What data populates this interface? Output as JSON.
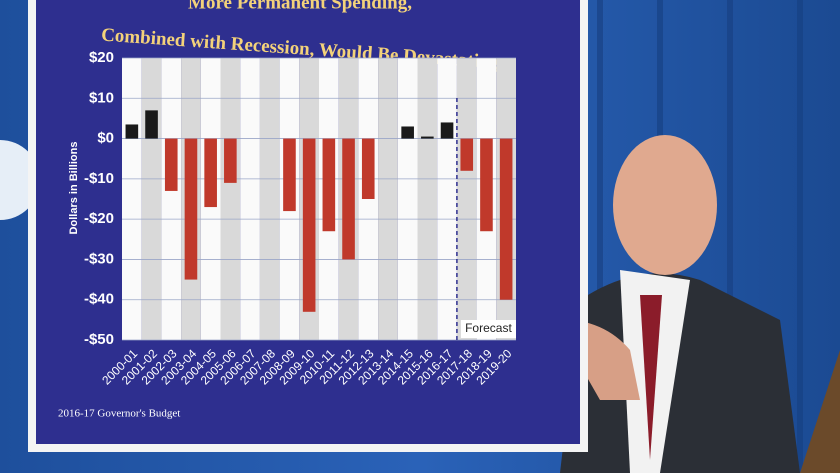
{
  "chart_data": {
    "type": "bar",
    "title_lines": [
      "More Permanent Spending,",
      "Combined with Recession, Would Be Devastating"
    ],
    "y_label": "Dollars in Billions",
    "categories": [
      "2000-01",
      "2001-02",
      "2002-03",
      "2003-04",
      "2004-05",
      "2005-06",
      "2006-07",
      "2007-08",
      "2008-09",
      "2009-10",
      "2010-11",
      "2011-12",
      "2012-13",
      "2013-14",
      "2014-15",
      "2015-16",
      "2016-17",
      "2017-18",
      "2018-19",
      "2019-20"
    ],
    "values": [
      3.5,
      7,
      -13,
      -35,
      -17,
      -11,
      0,
      0,
      -18,
      -43,
      -23,
      -30,
      -15,
      0,
      3,
      0.5,
      4,
      -8,
      -23,
      -40
    ],
    "positive_color": "#1a1a1a",
    "negative_color": "#c0392b",
    "ylim": [
      -50,
      20
    ],
    "yticks": [
      {
        "value": 20,
        "label": "$20"
      },
      {
        "value": 10,
        "label": "$10"
      },
      {
        "value": 0,
        "label": "$0"
      },
      {
        "value": -10,
        "label": "-$10"
      },
      {
        "value": -20,
        "label": "-$20"
      },
      {
        "value": -30,
        "label": "-$30"
      },
      {
        "value": -40,
        "label": "-$40"
      },
      {
        "value": -50,
        "label": "-$50"
      }
    ],
    "grid": true,
    "forecast_label": "Forecast",
    "forecast_start": "2017-18",
    "source": "2016-17 Governor's Budget"
  }
}
